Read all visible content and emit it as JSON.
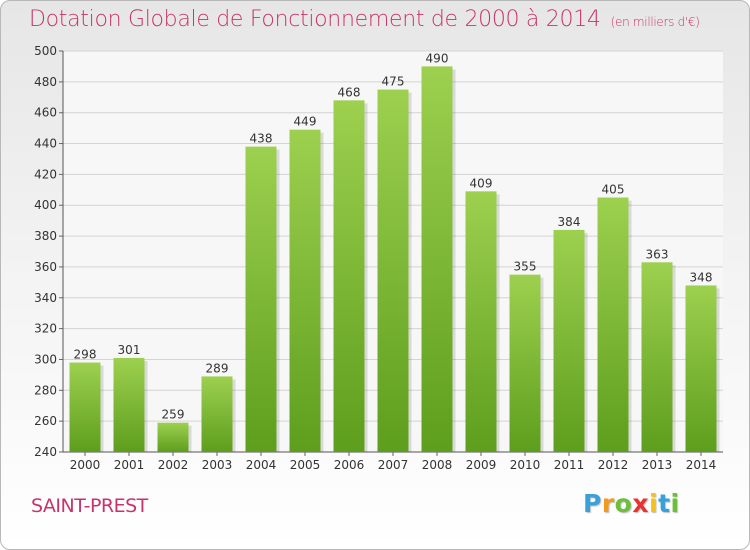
{
  "title": "Dotation Globale de Fonctionnement de 2000 à 2014",
  "subtitle": "(en milliers d'€)",
  "commune": "SAINT-PREST",
  "logo": {
    "letters": [
      "P",
      "r",
      "o",
      "x",
      "i",
      "t",
      "i"
    ],
    "colors": [
      "#3aa0d8",
      "#f29a1e",
      "#6bbf3a",
      "#e8342e",
      "#f2c21e",
      "#3aa0d8",
      "#6bbf3a"
    ]
  },
  "colors": {
    "accent": "#c8346a",
    "bar_top": "#9dd04f",
    "bar_bottom": "#5e9e1d",
    "grid": "#d4d4d4"
  },
  "chart_data": {
    "type": "bar",
    "categories": [
      "2000",
      "2001",
      "2002",
      "2003",
      "2004",
      "2005",
      "2006",
      "2007",
      "2008",
      "2009",
      "2010",
      "2011",
      "2012",
      "2013",
      "2014"
    ],
    "values": [
      298,
      301,
      259,
      289,
      438,
      449,
      468,
      475,
      490,
      409,
      355,
      384,
      405,
      363,
      348
    ],
    "title": "Dotation Globale de Fonctionnement de 2000 à 2014",
    "xlabel": "",
    "ylabel": "",
    "ylim": [
      240,
      500
    ],
    "yticks": [
      240,
      260,
      280,
      300,
      320,
      340,
      360,
      380,
      400,
      420,
      440,
      460,
      480,
      500
    ],
    "grid": true
  }
}
